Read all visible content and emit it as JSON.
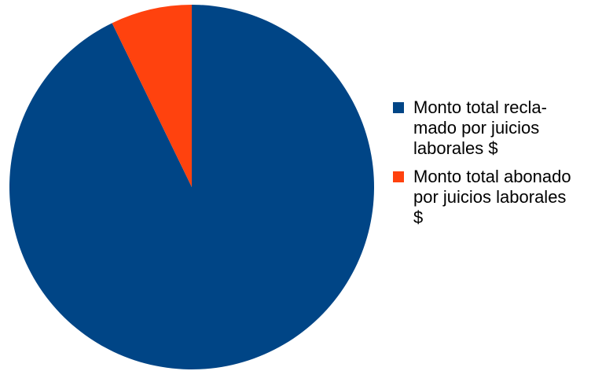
{
  "chart_data": {
    "type": "pie",
    "title": "",
    "categories": [
      "Monto total recla-\nmado por juicios\nlaborales $",
      "Monto total abonado\npor juicios laborales\n$"
    ],
    "values": [
      92.8,
      7.2
    ],
    "colors": [
      "#004586",
      "#ff420e"
    ],
    "start_angle_deg": 0,
    "direction": "clockwise",
    "legend_position": "right"
  }
}
